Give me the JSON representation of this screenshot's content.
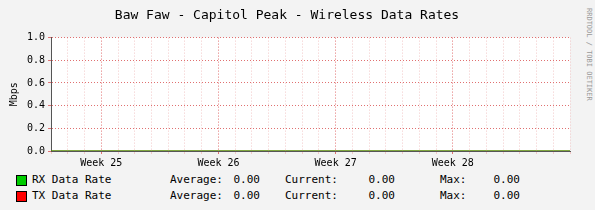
{
  "chart_data": {
    "type": "line",
    "title": "Baw Faw - Capitol Peak - Wireless Data Rates",
    "y_label": "Mbps",
    "categories": [
      null,
      null,
      null,
      "Week 25",
      null,
      null,
      null,
      null,
      null,
      null,
      "Week 26",
      null,
      null,
      null,
      null,
      null,
      null,
      "Week 27",
      null,
      null,
      null,
      null,
      null,
      null,
      "Week 28",
      null,
      null,
      null,
      null,
      null,
      null,
      null
    ],
    "series": [
      {
        "name": "RX Data Rate",
        "color": "#00cc00",
        "values": [
          0,
          0,
          0,
          0,
          0,
          0,
          0,
          0,
          0,
          0,
          0,
          0,
          0,
          0,
          0,
          0,
          0,
          0,
          0,
          0,
          0,
          0,
          0,
          0,
          0,
          0,
          0,
          0,
          0,
          0,
          0,
          0
        ],
        "stats": [
          {
            "name": "Average:",
            "value": 0,
            "label": "0.00"
          },
          {
            "name": "Current:",
            "value": 0,
            "label": "0.00"
          },
          {
            "name": "Max:",
            "value": 0,
            "label": "0.00"
          }
        ]
      },
      {
        "name": "TX Data Rate",
        "color": "#ff0000",
        "values": [
          0,
          0,
          0,
          0,
          0,
          0,
          0,
          0,
          0,
          0,
          0,
          0,
          0,
          0,
          0,
          0,
          0,
          0,
          0,
          0,
          0,
          0,
          0,
          0,
          0,
          0,
          0,
          0,
          0,
          0,
          0,
          0
        ],
        "stats": [
          {
            "name": "Average:",
            "value": 0,
            "label": "0.00"
          },
          {
            "name": "Current:",
            "value": 0,
            "label": "0.00"
          },
          {
            "name": "Max:",
            "value": 0,
            "label": "0.00"
          }
        ]
      }
    ],
    "ylim": [
      0,
      1
    ],
    "yticks": [
      {
        "value": 0,
        "label": "0.0"
      },
      0.2,
      0.4,
      0.6,
      0.8,
      {
        "value": 1,
        "label": "1.0"
      }
    ],
    "grid": true,
    "legend": "bottom",
    "watermark": "RRDTOOL / TOBI OETIKER"
  }
}
